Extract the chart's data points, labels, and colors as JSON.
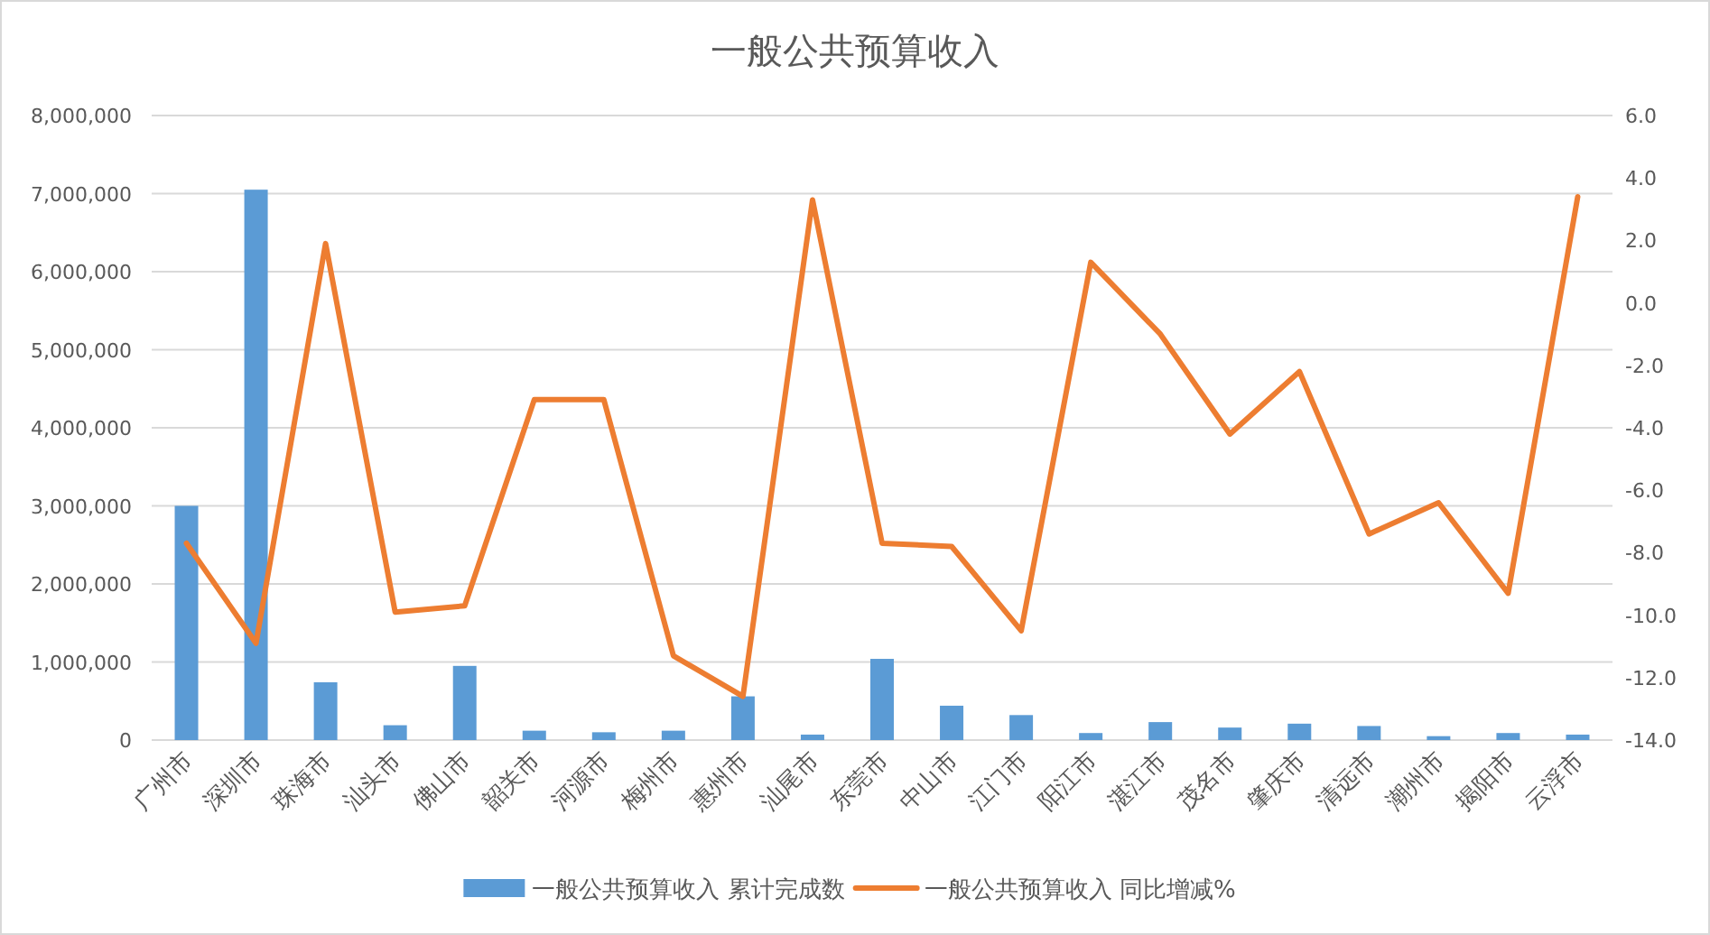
{
  "chart_data": {
    "type": "bar",
    "title": "一般公共预算收入",
    "categories": [
      "广州市",
      "深圳市",
      "珠海市",
      "汕头市",
      "佛山市",
      "韶关市",
      "河源市",
      "梅州市",
      "惠州市",
      "汕尾市",
      "东莞市",
      "中山市",
      "江门市",
      "阳江市",
      "湛江市",
      "茂名市",
      "肇庆市",
      "清远市",
      "潮州市",
      "揭阳市",
      "云浮市"
    ],
    "series": [
      {
        "name": "一般公共预算收入 累计完成数",
        "color": "#5b9bd5",
        "values": [
          3000000,
          7050000,
          740000,
          190000,
          950000,
          120000,
          100000,
          120000,
          560000,
          70000,
          1040000,
          440000,
          320000,
          90000,
          230000,
          160000,
          210000,
          180000,
          50000,
          90000,
          70000
        ]
      },
      {
        "name": "一般公共预算收入 同比增减%",
        "type": "line",
        "axis": "y2",
        "color": "#ed7d31",
        "values": [
          -7.7,
          -10.9,
          1.9,
          -9.9,
          -9.7,
          -3.1,
          -3.1,
          -11.3,
          -12.6,
          3.3,
          -7.7,
          -7.8,
          -10.5,
          1.3,
          -1.0,
          -4.2,
          -2.2,
          -7.4,
          -6.4,
          -9.3,
          3.4
        ]
      }
    ],
    "ylim": [
      0,
      8000000
    ],
    "yticks": [
      {
        "value": 0,
        "label": "0"
      },
      {
        "value": 1000000,
        "label": "1,000,000"
      },
      {
        "value": 2000000,
        "label": "2,000,000"
      },
      {
        "value": 3000000,
        "label": "3,000,000"
      },
      {
        "value": 4000000,
        "label": "4,000,000"
      },
      {
        "value": 5000000,
        "label": "5,000,000"
      },
      {
        "value": 6000000,
        "label": "6,000,000"
      },
      {
        "value": 7000000,
        "label": "7,000,000"
      },
      {
        "value": 8000000,
        "label": "8,000,000"
      }
    ],
    "y2lim": [
      -14,
      6
    ],
    "y2ticks": [
      {
        "value": -14,
        "label": "-14.0"
      },
      {
        "value": -12,
        "label": "-12.0"
      },
      {
        "value": -10,
        "label": "-10.0"
      },
      {
        "value": -8,
        "label": "-8.0"
      },
      {
        "value": -6,
        "label": "-6.0"
      },
      {
        "value": -4,
        "label": "-4.0"
      },
      {
        "value": -2,
        "label": "-2.0"
      },
      {
        "value": 0,
        "label": "0.0"
      },
      {
        "value": 2,
        "label": "2.0"
      },
      {
        "value": 4,
        "label": "4.0"
      },
      {
        "value": 6,
        "label": "6.0"
      }
    ],
    "grid": "y",
    "legend": "bottom",
    "marker": "none",
    "line_style": "solid"
  }
}
